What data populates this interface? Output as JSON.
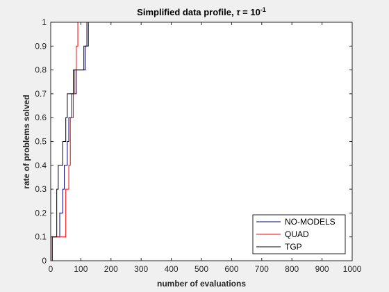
{
  "chart_data": {
    "type": "line",
    "step": true,
    "title": {
      "prefix": "Simplified data profile, ",
      "symbol": "τ",
      "relation": " = 10",
      "exponent": "-1"
    },
    "xlabel": "number of evaluations",
    "ylabel": "rate of problems solved",
    "xlim": [
      0,
      1000
    ],
    "ylim": [
      0,
      1
    ],
    "xticks": [
      0,
      100,
      200,
      300,
      400,
      500,
      600,
      700,
      800,
      900,
      1000
    ],
    "yticks": [
      0,
      0.1,
      0.2,
      0.3,
      0.4,
      0.5,
      0.6,
      0.7,
      0.8,
      0.9,
      1
    ],
    "xtick_labels": [
      "0",
      "100",
      "200",
      "300",
      "400",
      "500",
      "600",
      "700",
      "800",
      "900",
      "1000"
    ],
    "ytick_labels": [
      "0",
      "0.1",
      "0.2",
      "0.3",
      "0.4",
      "0.5",
      "0.6",
      "0.7",
      "0.8",
      "0.9",
      "1"
    ],
    "grid": false,
    "legend_position": "bottom-right",
    "series": [
      {
        "name": "NO-MODELS",
        "color": "#00007f",
        "points": [
          [
            0,
            0
          ],
          [
            5,
            0.1
          ],
          [
            30,
            0.2
          ],
          [
            40,
            0.3
          ],
          [
            45,
            0.4
          ],
          [
            55,
            0.5
          ],
          [
            60,
            0.6
          ],
          [
            70,
            0.7
          ],
          [
            85,
            0.8
          ],
          [
            115,
            0.9
          ],
          [
            125,
            1
          ],
          [
            130,
            1
          ]
        ]
      },
      {
        "name": "QUAD",
        "color": "#ff0000",
        "points": [
          [
            0,
            0
          ],
          [
            5,
            0.1
          ],
          [
            50,
            0.3
          ],
          [
            60,
            0.4
          ],
          [
            65,
            0.6
          ],
          [
            75,
            0.7
          ],
          [
            80,
            0.8
          ],
          [
            85,
            0.9
          ],
          [
            90,
            1
          ],
          [
            130,
            1
          ]
        ]
      },
      {
        "name": "TGP",
        "color": "#000000",
        "points": [
          [
            0,
            0
          ],
          [
            5,
            0.1
          ],
          [
            20,
            0.3
          ],
          [
            25,
            0.4
          ],
          [
            40,
            0.5
          ],
          [
            50,
            0.6
          ],
          [
            55,
            0.7
          ],
          [
            75,
            0.8
          ],
          [
            110,
            0.9
          ],
          [
            120,
            1
          ],
          [
            130,
            1
          ]
        ]
      }
    ]
  }
}
